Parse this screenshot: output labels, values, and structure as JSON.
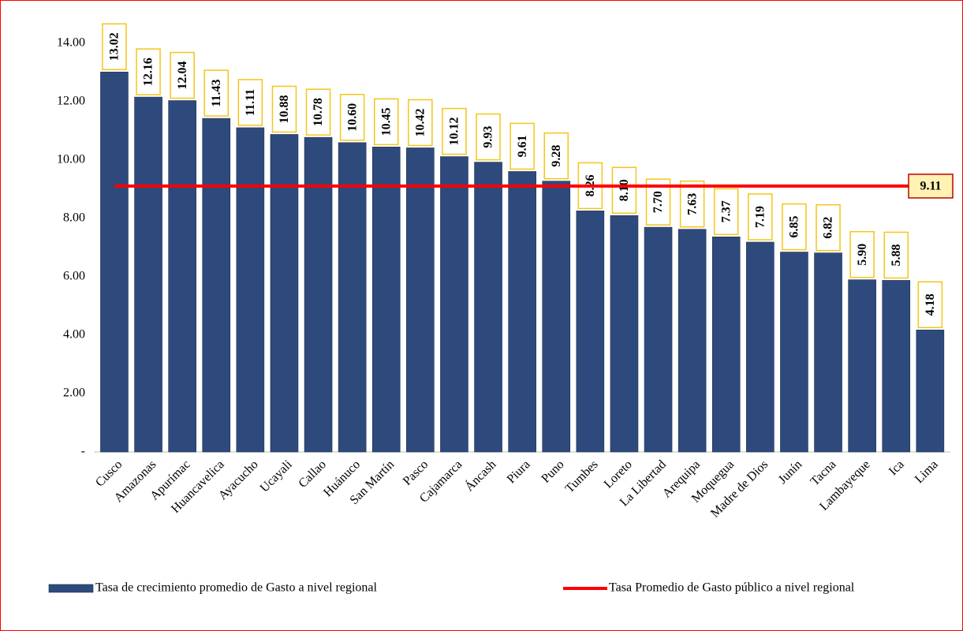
{
  "chart_data": {
    "type": "bar",
    "categories": [
      "Cusco",
      "Amazonas",
      "Apurímac",
      "Huancavelica",
      "Ayacucho",
      "Ucayali",
      "Callao",
      "Huánuco",
      "San Martín",
      "Pasco",
      "Cajamarca",
      "Áncash",
      "Piura",
      "Puno",
      "Tumbes",
      "Loreto",
      "La Libertad",
      "Arequipa",
      "Moquegua",
      "Madre de Dios",
      "Junín",
      "Tacna",
      "Lambayeque",
      "Ica",
      "Lima"
    ],
    "series": [
      {
        "name": "Tasa de crecimiento promedio de Gasto a nivel regional",
        "type": "bar",
        "color": "#2e4a7d",
        "values": [
          13.02,
          12.16,
          12.04,
          11.43,
          11.11,
          10.88,
          10.78,
          10.6,
          10.45,
          10.42,
          10.12,
          9.93,
          9.61,
          9.28,
          8.26,
          8.1,
          7.7,
          7.63,
          7.37,
          7.19,
          6.85,
          6.82,
          5.9,
          5.88,
          4.18
        ],
        "value_labels": [
          "13.02",
          "12.16",
          "12.04",
          "11.43",
          "11.11",
          "10.88",
          "10.78",
          "10.60",
          "10.45",
          "10.42",
          "10.12",
          "9.93",
          "9.61",
          "9.28",
          "8.26",
          "8.10",
          "7.70",
          "7.63",
          "7.37",
          "7.19",
          "6.85",
          "6.82",
          "5.90",
          "5.88",
          "4.18"
        ]
      },
      {
        "name": "Tasa Promedio de Gasto público a nivel regional",
        "type": "line",
        "color": "#ff0000",
        "values": [
          9.11,
          9.11,
          9.11,
          9.11,
          9.11,
          9.11,
          9.11,
          9.11,
          9.11,
          9.11,
          9.11,
          9.11,
          9.11,
          9.11,
          9.11,
          9.11,
          9.11,
          9.11,
          9.11,
          9.11,
          9.11,
          9.11,
          9.11,
          9.11,
          9.11
        ]
      }
    ],
    "ylim": [
      0,
      15
    ],
    "yticks": [
      {
        "value": 0,
        "label": "-"
      },
      {
        "value": 2,
        "label": "2.00"
      },
      {
        "value": 4,
        "label": "4.00"
      },
      {
        "value": 6,
        "label": "6.00"
      },
      {
        "value": 8,
        "label": "8.00"
      },
      {
        "value": 10,
        "label": "10.00"
      },
      {
        "value": 12,
        "label": "12.00"
      },
      {
        "value": 14,
        "label": "14.00"
      }
    ],
    "legend": "bottom"
  }
}
